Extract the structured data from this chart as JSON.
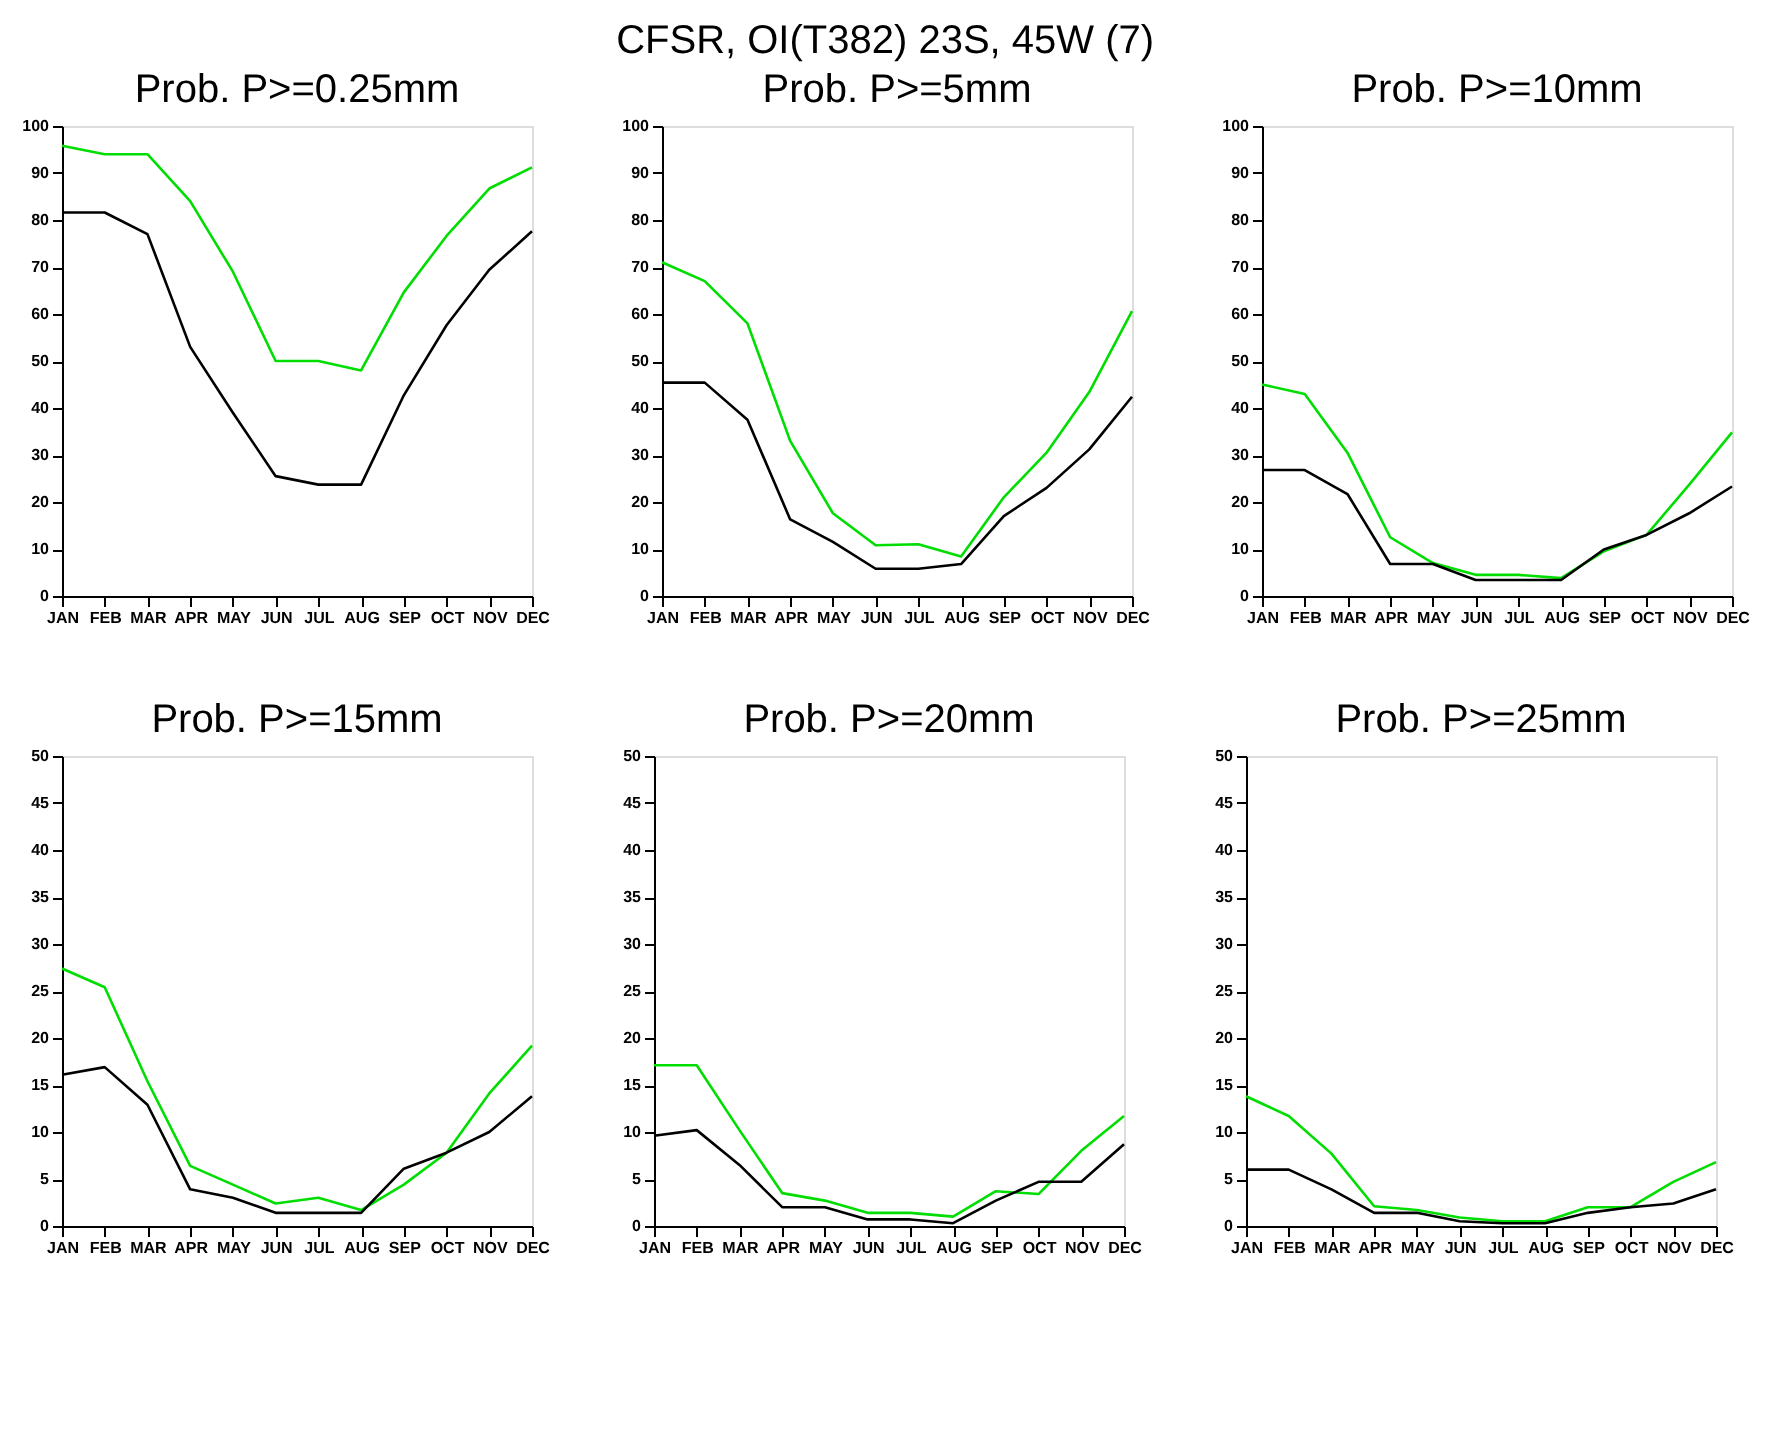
{
  "chart_data": [
    {
      "type": "line",
      "title": "Prob. P>=0.25mm",
      "annotations": [
        "CFSR, OI(T382) 23S, 45W (7)"
      ],
      "categories": [
        "JAN",
        "FEB",
        "MAR",
        "APR",
        "MAY",
        "JUN",
        "JUL",
        "AUG",
        "SEP",
        "OCT",
        "NOV",
        "DEC"
      ],
      "ylim": [
        0,
        100
      ],
      "yticks": [
        0,
        10,
        20,
        30,
        40,
        50,
        60,
        70,
        80,
        90,
        100
      ],
      "grid": false,
      "series": [
        {
          "color": "#00dd00",
          "values": [
            95.8,
            94,
            94,
            84,
            69,
            50,
            50,
            48,
            64.6,
            76.6,
            86.7,
            91.2
          ]
        },
        {
          "color": "#000000",
          "values": [
            81.6,
            81.6,
            77,
            53,
            39,
            25.5,
            23.7,
            23.7,
            42.7,
            57.6,
            69.4,
            77.6
          ]
        }
      ]
    },
    {
      "type": "line",
      "title": "Prob. P>=5mm",
      "categories": [
        "JAN",
        "FEB",
        "MAR",
        "APR",
        "MAY",
        "JUN",
        "JUL",
        "AUG",
        "SEP",
        "OCT",
        "NOV",
        "DEC"
      ],
      "ylim": [
        0,
        100
      ],
      "yticks": [
        0,
        10,
        20,
        30,
        40,
        50,
        60,
        70,
        80,
        90,
        100
      ],
      "grid": false,
      "series": [
        {
          "color": "#00dd00",
          "values": [
            71,
            67,
            58,
            33,
            17.6,
            10.8,
            11,
            8.4,
            21,
            30.5,
            43.4,
            60.6
          ]
        },
        {
          "color": "#000000",
          "values": [
            45.4,
            45.4,
            37.5,
            16.3,
            11.5,
            5.8,
            5.8,
            6.8,
            17,
            23,
            31.2,
            42.4
          ]
        }
      ]
    },
    {
      "type": "line",
      "title": "Prob. P>=10mm",
      "categories": [
        "JAN",
        "FEB",
        "MAR",
        "APR",
        "MAY",
        "JUN",
        "JUL",
        "AUG",
        "SEP",
        "OCT",
        "NOV",
        "DEC"
      ],
      "ylim": [
        0,
        100
      ],
      "yticks": [
        0,
        10,
        20,
        30,
        40,
        50,
        60,
        70,
        80,
        90,
        100
      ],
      "grid": false,
      "series": [
        {
          "color": "#00dd00",
          "values": [
            45,
            43,
            30.5,
            12.5,
            7,
            4.5,
            4.5,
            3.8,
            9.5,
            13,
            23.7,
            34.8
          ]
        },
        {
          "color": "#000000",
          "values": [
            26.8,
            26.8,
            21.7,
            6.8,
            6.8,
            3.4,
            3.4,
            3.4,
            9.9,
            13,
            17.6,
            23.3
          ]
        }
      ]
    },
    {
      "type": "line",
      "title": "Prob. P>=15mm",
      "categories": [
        "JAN",
        "FEB",
        "MAR",
        "APR",
        "MAY",
        "JUN",
        "JUL",
        "AUG",
        "SEP",
        "OCT",
        "NOV",
        "DEC"
      ],
      "ylim": [
        0,
        50
      ],
      "yticks": [
        0,
        5,
        10,
        15,
        20,
        25,
        30,
        35,
        40,
        45,
        50
      ],
      "grid": false,
      "series": [
        {
          "color": "#00dd00",
          "values": [
            27.4,
            25.4,
            15.4,
            6.4,
            4.4,
            2.4,
            3,
            1.7,
            4.4,
            7.8,
            14.1,
            19.2
          ]
        },
        {
          "color": "#000000",
          "values": [
            16.1,
            16.9,
            12.9,
            3.9,
            3,
            1.4,
            1.4,
            1.4,
            6.1,
            7.8,
            10,
            13.8
          ]
        }
      ]
    },
    {
      "type": "line",
      "title": "Prob. P>=20mm",
      "categories": [
        "JAN",
        "FEB",
        "MAR",
        "APR",
        "MAY",
        "JUN",
        "JUL",
        "AUG",
        "SEP",
        "OCT",
        "NOV",
        "DEC"
      ],
      "ylim": [
        0,
        50
      ],
      "yticks": [
        0,
        5,
        10,
        15,
        20,
        25,
        30,
        35,
        40,
        45,
        50
      ],
      "grid": false,
      "series": [
        {
          "color": "#00dd00",
          "values": [
            17.1,
            17.1,
            10.2,
            3.5,
            2.7,
            1.4,
            1.4,
            1,
            3.7,
            3.4,
            8,
            11.7
          ]
        },
        {
          "color": "#000000",
          "values": [
            9.6,
            10.2,
            6.5,
            2,
            2,
            0.7,
            0.7,
            0.3,
            2.7,
            4.7,
            4.7,
            8.7
          ]
        }
      ]
    },
    {
      "type": "line",
      "title": "Prob. P>=25mm",
      "categories": [
        "JAN",
        "FEB",
        "MAR",
        "APR",
        "MAY",
        "JUN",
        "JUL",
        "AUG",
        "SEP",
        "OCT",
        "NOV",
        "DEC"
      ],
      "ylim": [
        0,
        50
      ],
      "yticks": [
        0,
        5,
        10,
        15,
        20,
        25,
        30,
        35,
        40,
        45,
        50
      ],
      "grid": false,
      "series": [
        {
          "color": "#00dd00",
          "values": [
            13.8,
            11.7,
            7.7,
            2.1,
            1.7,
            0.9,
            0.5,
            0.5,
            2,
            2,
            4.7,
            6.8
          ]
        },
        {
          "color": "#000000",
          "values": [
            6,
            6,
            3.9,
            1.4,
            1.4,
            0.5,
            0.3,
            0.3,
            1.4,
            2,
            2.4,
            3.9
          ]
        }
      ]
    }
  ]
}
